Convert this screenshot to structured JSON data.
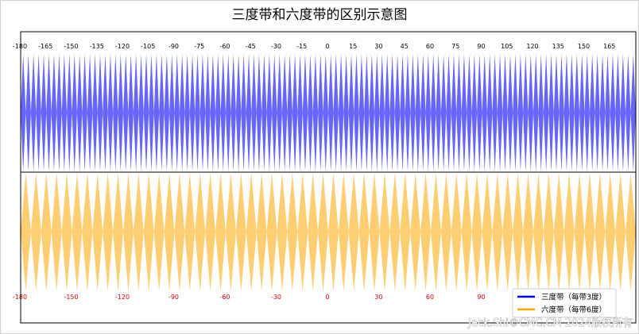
{
  "chart_data": {
    "type": "area",
    "title": "三度带和六度带的区别示意图",
    "xlim": [
      -180,
      180
    ],
    "top_ticks": [
      -180,
      -165,
      -150,
      -135,
      -120,
      -105,
      -90,
      -75,
      -60,
      -45,
      -30,
      -15,
      0,
      15,
      30,
      45,
      60,
      75,
      90,
      105,
      120,
      135,
      150,
      165
    ],
    "bottom_ticks": [
      -180,
      -150,
      -120,
      -90,
      -60,
      -30,
      0,
      30,
      60,
      90
    ],
    "series": [
      {
        "name": "三度带（每带3度）",
        "zone_width_deg": 3,
        "color": "#0000ff"
      },
      {
        "name": "六度带（每带6度）",
        "zone_width_deg": 6,
        "color": "#ffa500"
      }
    ],
    "legend_position": "lower-right",
    "grid": false
  },
  "watermark": "Jack.Shi©CMC.CM 2024版权所有"
}
